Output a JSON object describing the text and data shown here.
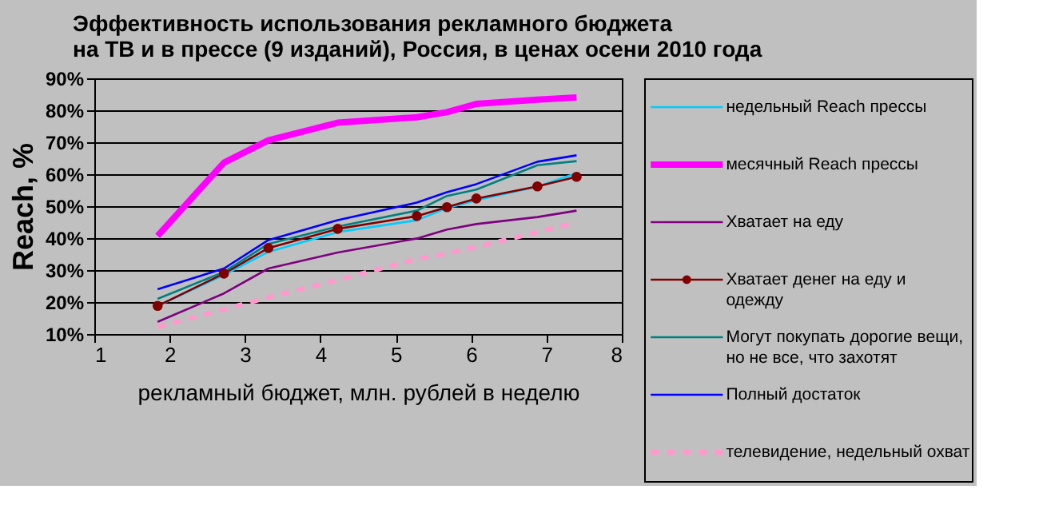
{
  "chart_data": {
    "type": "line",
    "title": "Эффективность использования рекламного бюджета\nна ТВ и в прессе (9 изданий), Россия, в ценах осени 2010 года",
    "xlabel": "рекламный бюджет, млн. рублей в неделю",
    "ylabel": "Reach, %",
    "x": [
      1.84,
      2.72,
      3.31,
      4.23,
      5.28,
      5.68,
      6.07,
      6.88,
      7.4
    ],
    "xlim": [
      1,
      8
    ],
    "xticks": [
      1,
      2,
      3,
      4,
      5,
      6,
      7,
      8
    ],
    "ylim": [
      10,
      90
    ],
    "yticks": [
      {
        "value": 10,
        "label": "10%"
      },
      {
        "value": 20,
        "label": "20%"
      },
      {
        "value": 30,
        "label": "30%"
      },
      {
        "value": 40,
        "label": "40%"
      },
      {
        "value": 50,
        "label": "50%"
      },
      {
        "value": 60,
        "label": "60%"
      },
      {
        "value": 70,
        "label": "70%"
      },
      {
        "value": 80,
        "label": "80%"
      },
      {
        "value": 90,
        "label": "90%"
      }
    ],
    "grid": "y",
    "legend": "right",
    "series": [
      {
        "name": "недельный Reach прессы",
        "color": "#00ccff",
        "values": [
          18.8,
          28.5,
          35.7,
          41.9,
          45.6,
          49.4,
          51.9,
          56.1,
          60.3
        ]
      },
      {
        "name": "месячный Reach прессы",
        "color": "#ff00ff",
        "values": [
          40.7,
          63.6,
          70.6,
          76.1,
          77.8,
          79.4,
          82.0,
          83.3,
          84.0
        ]
      },
      {
        "name": "Хватает на еду",
        "color": "#800080",
        "values": [
          13.8,
          22.7,
          30.5,
          35.5,
          39.9,
          42.7,
          44.4,
          46.6,
          48.6
        ]
      },
      {
        "name": "Хватает денег на еду и одежду",
        "color": "#800000",
        "marker": "circle",
        "values": [
          18.8,
          28.9,
          36.9,
          42.9,
          46.9,
          49.7,
          52.4,
          56.2,
          59.2
        ]
      },
      {
        "name": "Могут покупать дорогие вещи, но не все, что захотят",
        "color": "#008080",
        "values": [
          21.0,
          29.4,
          38.2,
          43.6,
          48.6,
          53.2,
          55.2,
          62.8,
          64.1
        ]
      },
      {
        "name": "Полный достаток",
        "color": "#0000ff",
        "values": [
          24.0,
          30.5,
          39.4,
          45.6,
          51.1,
          54.4,
          56.9,
          63.9,
          65.9
        ]
      },
      {
        "name": "телевидение, недельный охват",
        "color": "#ff99cc",
        "line_style": "dashed",
        "values": [
          12.2,
          17.7,
          21.5,
          26.9,
          33.5,
          35.2,
          37.2,
          41.9,
          44.9
        ]
      }
    ]
  }
}
